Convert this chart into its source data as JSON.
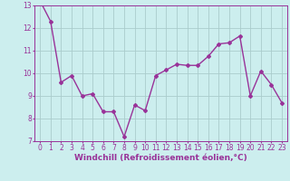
{
  "x": [
    0,
    1,
    2,
    3,
    4,
    5,
    6,
    7,
    8,
    9,
    10,
    11,
    12,
    13,
    14,
    15,
    16,
    17,
    18,
    19,
    20,
    21,
    22,
    23
  ],
  "y": [
    13.2,
    12.3,
    9.6,
    9.9,
    9.0,
    9.1,
    8.3,
    8.3,
    7.2,
    8.6,
    8.35,
    9.9,
    10.15,
    10.4,
    10.35,
    10.35,
    10.75,
    11.3,
    11.35,
    11.65,
    9.0,
    10.1,
    9.5,
    8.7
  ],
  "line_color": "#993399",
  "marker": "D",
  "markersize": 2,
  "linewidth": 1.0,
  "bg_color": "#cceeee",
  "grid_color": "#aacccc",
  "xlabel": "Windchill (Refroidissement éolien,°C)",
  "xlabel_color": "#993399",
  "xlabel_fontsize": 6.5,
  "tick_color": "#993399",
  "tick_fontsize": 5.5,
  "ylim": [
    7,
    13
  ],
  "yticks": [
    7,
    8,
    9,
    10,
    11,
    12,
    13
  ],
  "xticks": [
    0,
    1,
    2,
    3,
    4,
    5,
    6,
    7,
    8,
    9,
    10,
    11,
    12,
    13,
    14,
    15,
    16,
    17,
    18,
    19,
    20,
    21,
    22,
    23
  ]
}
